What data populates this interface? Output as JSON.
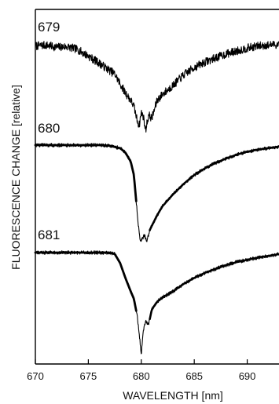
{
  "chart_data": {
    "type": "line",
    "title": "",
    "xlabel": "WAVELENGTH [nm]",
    "ylabel": "FLUORESCENCE CHANGE [relative]",
    "xlim": [
      670,
      693
    ],
    "x_ticks": [
      670,
      675,
      680,
      685,
      690
    ],
    "y_ticks": [],
    "grid": false,
    "legend": "none",
    "series_color": "#000000",
    "series": [
      {
        "name": "679",
        "x": [
          670,
          671,
          672,
          673,
          674,
          675,
          676,
          677,
          677.5,
          678,
          678.5,
          679,
          679.3,
          679.6,
          679.8,
          680,
          680.2,
          680.4,
          680.7,
          681,
          681.5,
          682,
          683,
          684,
          685,
          686,
          687,
          688,
          689,
          690,
          691,
          692,
          693
        ],
        "y": [
          -0.28,
          -0.25,
          -0.32,
          -0.3,
          -0.4,
          -0.62,
          -0.85,
          -1.1,
          -1.22,
          -1.55,
          -1.85,
          -2.1,
          -2.3,
          -2.75,
          -2.95,
          -2.5,
          -2.65,
          -3.1,
          -2.6,
          -2.7,
          -2.1,
          -1.9,
          -1.6,
          -1.25,
          -1.0,
          -0.82,
          -0.68,
          -0.55,
          -0.45,
          -0.35,
          -0.28,
          -0.25,
          -0.22
        ]
      },
      {
        "name": "680",
        "x": [
          670,
          672,
          674,
          676,
          677,
          678,
          678.5,
          679,
          679.3,
          679.5,
          679.7,
          679.9,
          680.1,
          680.3,
          680.5,
          680.8,
          681,
          681.5,
          682,
          683,
          684,
          685,
          686,
          687,
          688,
          689,
          690,
          691,
          692,
          693
        ],
        "y": [
          0,
          0,
          0,
          0,
          -0.02,
          -0.1,
          -0.25,
          -0.55,
          -1.0,
          -1.8,
          -2.6,
          -3.2,
          -3.15,
          -3.0,
          -3.25,
          -2.85,
          -2.7,
          -2.35,
          -2.05,
          -1.65,
          -1.3,
          -1.0,
          -0.78,
          -0.6,
          -0.45,
          -0.32,
          -0.22,
          -0.15,
          -0.1,
          -0.05
        ]
      },
      {
        "name": "681",
        "x": [
          670,
          672,
          674,
          676,
          677,
          677.5,
          678,
          678.5,
          679,
          679.3,
          679.6,
          679.8,
          680,
          680.2,
          680.4,
          680.7,
          681,
          681.5,
          682,
          683,
          684,
          685,
          686,
          687,
          688,
          689,
          690,
          691,
          692,
          693
        ],
        "y": [
          0,
          0,
          0,
          0,
          0,
          -0.05,
          -0.35,
          -0.85,
          -1.3,
          -1.55,
          -2.1,
          -2.7,
          -3.4,
          -2.6,
          -2.3,
          -2.4,
          -1.9,
          -1.65,
          -1.5,
          -1.3,
          -1.05,
          -0.85,
          -0.68,
          -0.55,
          -0.42,
          -0.32,
          -0.24,
          -0.17,
          -0.11,
          -0.05
        ]
      }
    ]
  }
}
